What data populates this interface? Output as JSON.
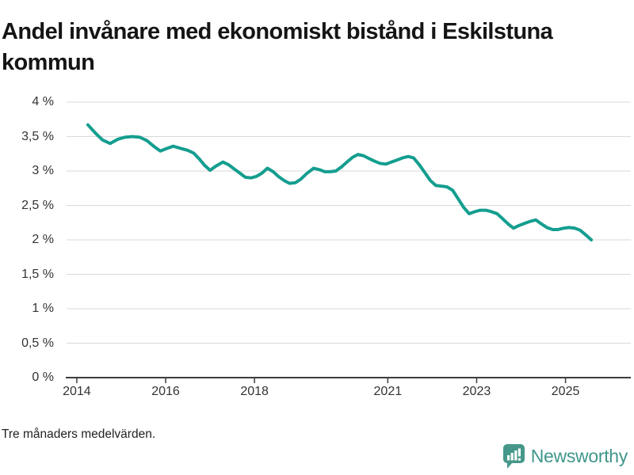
{
  "header": {
    "title": "Andel invånare med ekonomiskt bistånd i Eskilstuna kommun"
  },
  "footer": {
    "note": "Tre månaders medelvärden.",
    "brand": "Newsworthy"
  },
  "colors": {
    "line": "#149E8F",
    "grid": "#D9D9D9",
    "axis": "#3C3C3C",
    "tick_text": "#333333",
    "title_text": "#151515",
    "brand_teal": "#3F968B",
    "brand_icon": "#459889"
  },
  "chart_data": {
    "type": "line",
    "title": "Andel invånare med ekonomiskt bistånd i Eskilstuna kommun",
    "subtitle_note": "Tre månaders medelvärden.",
    "xlabel": "",
    "ylabel": "",
    "legend": "none",
    "grid": "horizontal",
    "xlim": [
      2013.77,
      2026.47
    ],
    "ylim": [
      0,
      4
    ],
    "x_ticks": [
      {
        "value": 2014,
        "label": "2014"
      },
      {
        "value": 2016,
        "label": "2016"
      },
      {
        "value": 2018,
        "label": "2018"
      },
      {
        "value": 2021,
        "label": "2021"
      },
      {
        "value": 2023,
        "label": "2023"
      },
      {
        "value": 2025,
        "label": "2025"
      }
    ],
    "y_ticks": [
      {
        "value": 0,
        "label": "0 %"
      },
      {
        "value": 0.5,
        "label": "0,5 %"
      },
      {
        "value": 1,
        "label": "1 %"
      },
      {
        "value": 1.5,
        "label": "1,5 %"
      },
      {
        "value": 2,
        "label": "2 %"
      },
      {
        "value": 2.5,
        "label": "2,5 %"
      },
      {
        "value": 3,
        "label": "3 %"
      },
      {
        "value": 3.5,
        "label": "3,5 %"
      },
      {
        "value": 4,
        "label": "4 %"
      }
    ],
    "series": [
      {
        "name": "Andel invånare med ekonomiskt bistånd",
        "color": "#149E8F",
        "x": [
          2014.25,
          2014.42,
          2014.58,
          2014.75,
          2014.92,
          2015.08,
          2015.25,
          2015.42,
          2015.58,
          2015.75,
          2015.88,
          2016.04,
          2016.17,
          2016.33,
          2016.5,
          2016.63,
          2016.75,
          2016.88,
          2017.0,
          2017.13,
          2017.29,
          2017.42,
          2017.54,
          2017.67,
          2017.79,
          2017.92,
          2018.04,
          2018.17,
          2018.29,
          2018.42,
          2018.54,
          2018.67,
          2018.79,
          2018.92,
          2019.04,
          2019.17,
          2019.33,
          2019.46,
          2019.58,
          2019.71,
          2019.83,
          2019.96,
          2020.08,
          2020.21,
          2020.33,
          2020.46,
          2020.58,
          2020.71,
          2020.83,
          2020.96,
          2021.08,
          2021.21,
          2021.33,
          2021.46,
          2021.58,
          2021.71,
          2021.83,
          2021.96,
          2022.08,
          2022.21,
          2022.33,
          2022.46,
          2022.58,
          2022.71,
          2022.83,
          2022.96,
          2023.08,
          2023.21,
          2023.33,
          2023.46,
          2023.58,
          2023.71,
          2023.83,
          2023.96,
          2024.08,
          2024.21,
          2024.33,
          2024.46,
          2024.58,
          2024.71,
          2024.83,
          2024.96,
          2025.08,
          2025.21,
          2025.33,
          2025.46,
          2025.58
        ],
        "values": [
          3.67,
          3.55,
          3.45,
          3.4,
          3.46,
          3.49,
          3.5,
          3.49,
          3.44,
          3.35,
          3.29,
          3.33,
          3.36,
          3.33,
          3.3,
          3.26,
          3.18,
          3.08,
          3.01,
          3.07,
          3.13,
          3.09,
          3.03,
          2.97,
          2.91,
          2.9,
          2.92,
          2.97,
          3.04,
          2.99,
          2.92,
          2.86,
          2.82,
          2.83,
          2.88,
          2.96,
          3.04,
          3.02,
          2.99,
          2.99,
          3.0,
          3.06,
          3.13,
          3.2,
          3.24,
          3.22,
          3.18,
          3.14,
          3.11,
          3.1,
          3.13,
          3.16,
          3.19,
          3.21,
          3.19,
          3.09,
          2.98,
          2.86,
          2.79,
          2.78,
          2.77,
          2.72,
          2.6,
          2.47,
          2.38,
          2.41,
          2.43,
          2.43,
          2.41,
          2.38,
          2.31,
          2.23,
          2.17,
          2.21,
          2.24,
          2.27,
          2.29,
          2.23,
          2.18,
          2.15,
          2.15,
          2.17,
          2.18,
          2.17,
          2.14,
          2.07,
          2.0
        ]
      }
    ]
  }
}
